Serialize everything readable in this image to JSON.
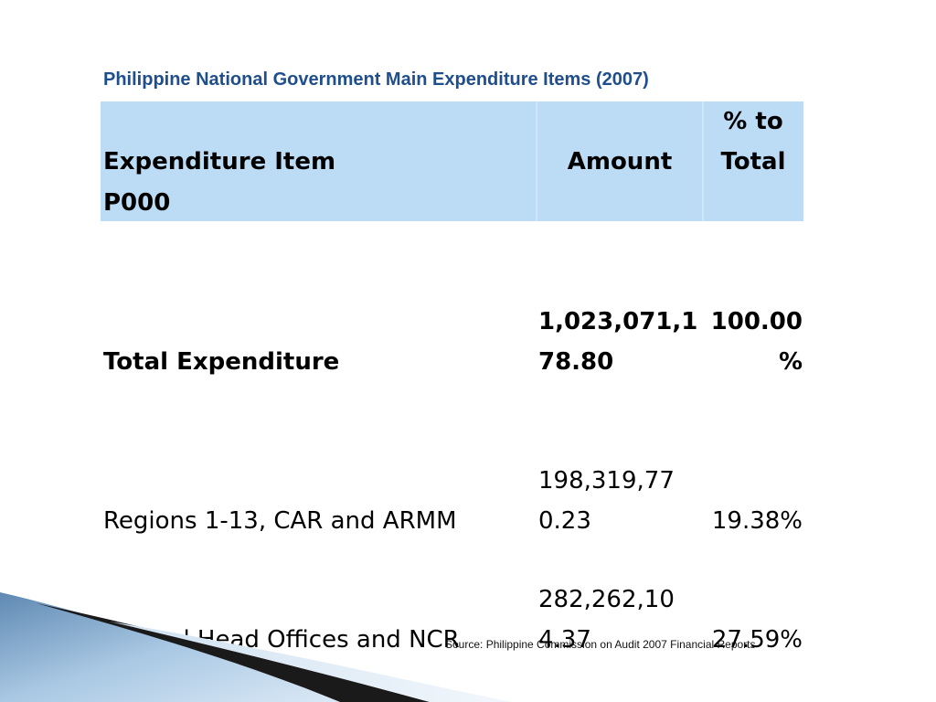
{
  "title": "Philippine National Government Main Expenditure Items (2007)",
  "header": {
    "item_line1": "Expenditure Item",
    "item_line2": "P000",
    "amount": "Amount",
    "pct_line1": "% to",
    "pct_line2": "Total"
  },
  "rows": [
    {
      "item": "Total Expenditure",
      "amount_line1": "1,023,071,1",
      "amount_line2": "78.80",
      "pct_line1": "100.00",
      "pct_line2": "%"
    },
    {
      "item": "Regions 1-13, CAR and ARMM",
      "amount_line1": "198,319,77",
      "amount_line2": "0.23",
      "pct": "19.38%"
    },
    {
      "item": "Central Head Offices and NCR",
      "amount_line1": "282,262,10",
      "amount_line2": "4.37",
      "pct": "27.59%"
    }
  ],
  "source": "Source: Philippine Commission on Audit 2007 Financial Reports",
  "colors": {
    "title": "#1f4e8c",
    "header_fill": "#bcdcf6",
    "corner_band": "#7fa6c8"
  }
}
